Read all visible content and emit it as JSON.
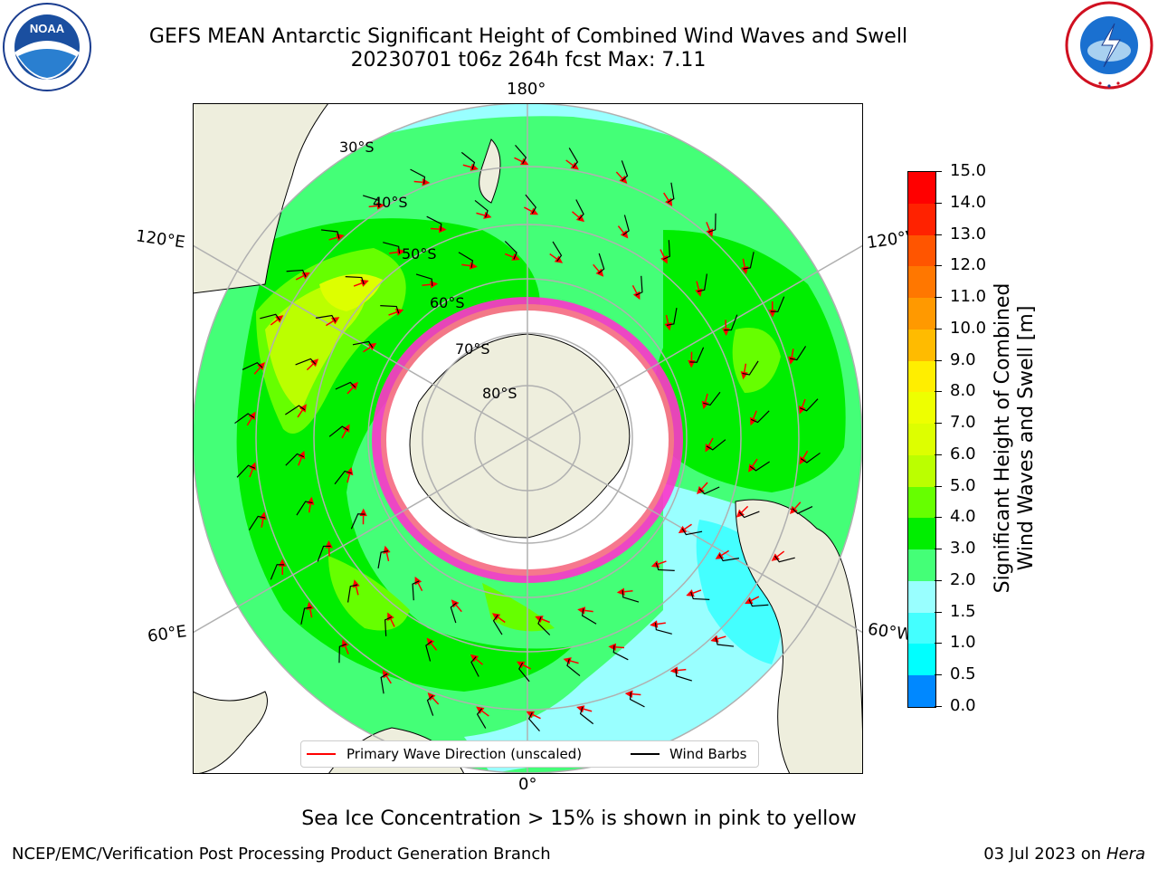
{
  "header": {
    "title_line1": "GEFS MEAN Antarctic Significant Height of Combined Wind Waves and Swell",
    "title_line2": "20230701 t06z 264h fcst   Max: 7.11"
  },
  "logos": {
    "left": {
      "icon": "noaa-logo",
      "text": "NOAA",
      "ring_text": "NATIONAL OCEANIC AND ATMOSPHERIC ADMINISTRATION · U.S. DEPARTMENT OF COMMERCE"
    },
    "right": {
      "icon": "nws-logo",
      "ring_text": "NATIONAL WEATHER SERVICE"
    }
  },
  "map": {
    "projection": "south-polar-stereographic",
    "longitude_labels": {
      "top": "180°",
      "upper_left": "120°E",
      "upper_right": "120°W",
      "lower_left": "60°E",
      "lower_right": "60°W",
      "bottom": "0°"
    },
    "latitude_labels": [
      "30°S",
      "40°S",
      "50°S",
      "60°S",
      "70°S",
      "80°S"
    ],
    "colors": {
      "land": "#eeeedd",
      "grid": "#b0b0b0",
      "coast": "#000000",
      "ice": "#ffffff",
      "ice_edge": "#ff33cc",
      "arrow": "#ff0000",
      "barb": "#000000"
    }
  },
  "legend": {
    "wave_label": "Primary Wave Direction (unscaled)",
    "wave_color": "#ff0000",
    "wind_label": "Wind Barbs",
    "wind_color": "#000000"
  },
  "colorbar": {
    "label_line1": "Significant Height of Combined",
    "label_line2": "Wind Waves and Swell [m]",
    "ticks": [
      "15.0",
      "14.0",
      "13.0",
      "12.0",
      "11.0",
      "10.0",
      "9.0",
      "8.0",
      "7.0",
      "6.0",
      "5.0",
      "4.0",
      "3.0",
      "2.0",
      "1.5",
      "1.0",
      "0.5",
      "0.0"
    ],
    "colors_top_to_bottom": [
      "#ff0000",
      "#ff2200",
      "#ff5500",
      "#ff7700",
      "#ff9900",
      "#ffbb00",
      "#ffee00",
      "#eeff00",
      "#ddff00",
      "#bbff00",
      "#66ff00",
      "#00ee00",
      "#44ff77",
      "#99ffff",
      "#44ffff",
      "#00ffff",
      "#0088ff",
      "#0000ff"
    ]
  },
  "footer": {
    "note": "Sea Ice Concentration > 15% is shown in pink to yellow",
    "left": "NCEP/EMC/Verification Post Processing Product Generation Branch",
    "right_date": "03 Jul 2023 on ",
    "right_host": "Hera"
  }
}
